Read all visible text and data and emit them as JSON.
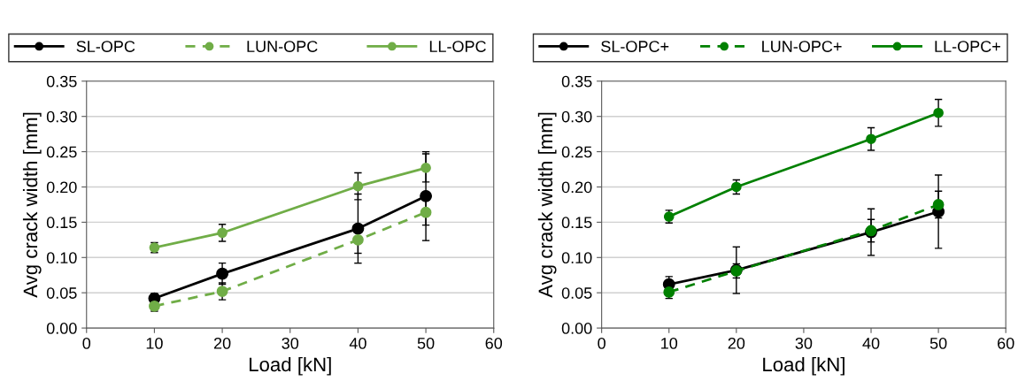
{
  "chart_data": [
    {
      "type": "line",
      "xlabel": "Load [kN]",
      "ylabel": "Avg crack width [mm]",
      "xlim": [
        0,
        60
      ],
      "xticks": [
        0,
        10,
        20,
        30,
        40,
        50,
        60
      ],
      "ylim": [
        0,
        0.35
      ],
      "yticks": [
        {
          "value": 0,
          "label": "0.00"
        },
        {
          "value": 0.05,
          "label": "0.05"
        },
        {
          "value": 0.1,
          "label": "0.10"
        },
        {
          "value": 0.15,
          "label": "0.15"
        },
        {
          "value": 0.2,
          "label": "0.20"
        },
        {
          "value": 0.25,
          "label": "0.25"
        },
        {
          "value": 0.3,
          "label": "0.30"
        },
        {
          "value": 0.35,
          "label": "0.35"
        }
      ],
      "grid": "y",
      "legend": "top",
      "marker": "circle",
      "x": [
        10,
        20,
        40,
        50
      ],
      "series": [
        {
          "name": "SL-OPC",
          "color": "#000000",
          "line_style": "solid",
          "values": [
            0.042,
            0.077,
            0.141,
            0.187
          ],
          "errors": [
            0.007,
            0.015,
            0.049,
            0.063
          ]
        },
        {
          "name": "LUN-OPC",
          "color": "#70ad47",
          "line_style": "dashed",
          "values": [
            0.031,
            0.052,
            0.125,
            0.164
          ],
          "errors": [
            0.007,
            0.012,
            0.019,
            0.018
          ]
        },
        {
          "name": "LL-OPC",
          "color": "#70ad47",
          "line_style": "solid",
          "values": [
            0.114,
            0.135,
            0.201,
            0.227
          ],
          "errors": [
            0.007,
            0.012,
            0.019,
            0.02
          ]
        }
      ]
    },
    {
      "type": "line",
      "xlabel": "Load [kN]",
      "ylabel": "Avg crack width [mm]",
      "xlim": [
        0,
        60
      ],
      "xticks": [
        0,
        10,
        20,
        30,
        40,
        50,
        60
      ],
      "ylim": [
        0,
        0.35
      ],
      "yticks": [
        {
          "value": 0,
          "label": "0.00"
        },
        {
          "value": 0.05,
          "label": "0.05"
        },
        {
          "value": 0.1,
          "label": "0.10"
        },
        {
          "value": 0.15,
          "label": "0.15"
        },
        {
          "value": 0.2,
          "label": "0.20"
        },
        {
          "value": 0.25,
          "label": "0.25"
        },
        {
          "value": 0.3,
          "label": "0.30"
        },
        {
          "value": 0.35,
          "label": "0.35"
        }
      ],
      "grid": "y",
      "legend": "top",
      "marker": "circle",
      "x": [
        10,
        20,
        40,
        50
      ],
      "series": [
        {
          "name": "SL-OPC+",
          "color": "#000000",
          "line_style": "solid",
          "values": [
            0.062,
            0.082,
            0.136,
            0.165
          ],
          "errors": [
            0.011,
            0.033,
            0.033,
            0.052
          ]
        },
        {
          "name": "LUN-OPC+",
          "color": "#008000",
          "line_style": "dashed",
          "values": [
            0.051,
            0.081,
            0.138,
            0.175
          ],
          "errors": [
            0.009,
            0.01,
            0.016,
            0.019
          ]
        },
        {
          "name": "LL-OPC+",
          "color": "#008000",
          "line_style": "solid",
          "values": [
            0.158,
            0.2,
            0.268,
            0.305
          ],
          "errors": [
            0.009,
            0.01,
            0.016,
            0.019
          ]
        }
      ]
    }
  ]
}
